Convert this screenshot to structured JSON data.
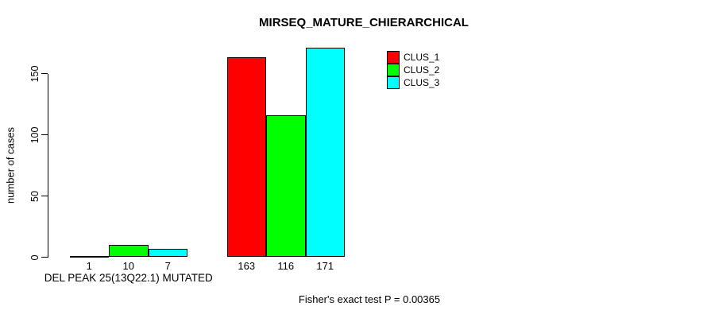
{
  "chart_data": {
    "type": "bar",
    "title": "MIRSEQ_MATURE_CHIERARCHICAL",
    "ylabel": "number of cases",
    "xlabel": "",
    "ylim": [
      0,
      175
    ],
    "yticks": [
      0,
      50,
      100,
      150
    ],
    "grid": false,
    "legend_position": "top-right",
    "categories": [
      "DEL PEAK 25(13Q22.1) MUTATED",
      ""
    ],
    "series": [
      {
        "name": "CLUS_1",
        "color": "#ff0000",
        "values": [
          1,
          163
        ]
      },
      {
        "name": "CLUS_2",
        "color": "#00ff00",
        "values": [
          10,
          116
        ]
      },
      {
        "name": "CLUS_3",
        "color": "#00ffff",
        "values": [
          7,
          171
        ]
      }
    ],
    "show_bar_values": true,
    "annotation": "Fisher's exact test P = 0.00365"
  }
}
